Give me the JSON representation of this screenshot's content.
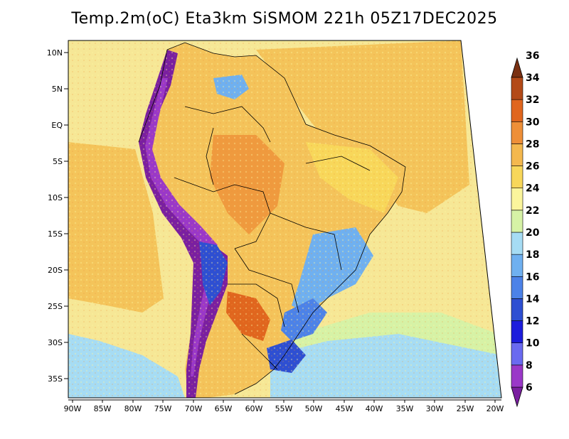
{
  "title": "Temp.2m(oC) Eta3km SiSMOM 221h 05Z17DEC2025",
  "map": {
    "lat_ticks": [
      "10N",
      "5N",
      "EQ",
      "5S",
      "10S",
      "15S",
      "20S",
      "25S",
      "30S",
      "35S"
    ],
    "lon_ticks": [
      "90W",
      "85W",
      "80W",
      "75W",
      "70W",
      "65W",
      "60W",
      "55W",
      "50W",
      "45W",
      "40W",
      "35W",
      "30W",
      "25W",
      "20W"
    ]
  },
  "colorbar": {
    "labels": [
      "6",
      "8",
      "10",
      "12",
      "14",
      "16",
      "18",
      "20",
      "22",
      "24",
      "26",
      "28",
      "30",
      "32",
      "34",
      "36"
    ],
    "colors": [
      "#7a1fa0",
      "#9a38c8",
      "#6a6af0",
      "#1d1ddc",
      "#2e4fd2",
      "#4c82e8",
      "#6fb0f0",
      "#a6dcf4",
      "#d6f2a6",
      "#fbf59c",
      "#f8d75a",
      "#f4b84e",
      "#ee8f38",
      "#e0661e",
      "#b34a18",
      "#7a3012"
    ]
  },
  "colors": {
    "ocean_base": "#f6e796",
    "warm_ocean": "#f4c45a",
    "land_base": "#f4c35a",
    "hot_land": "#ef9a3e",
    "andes_cold": "#7a1fa0",
    "highland_blue": "#6fb0f0"
  }
}
